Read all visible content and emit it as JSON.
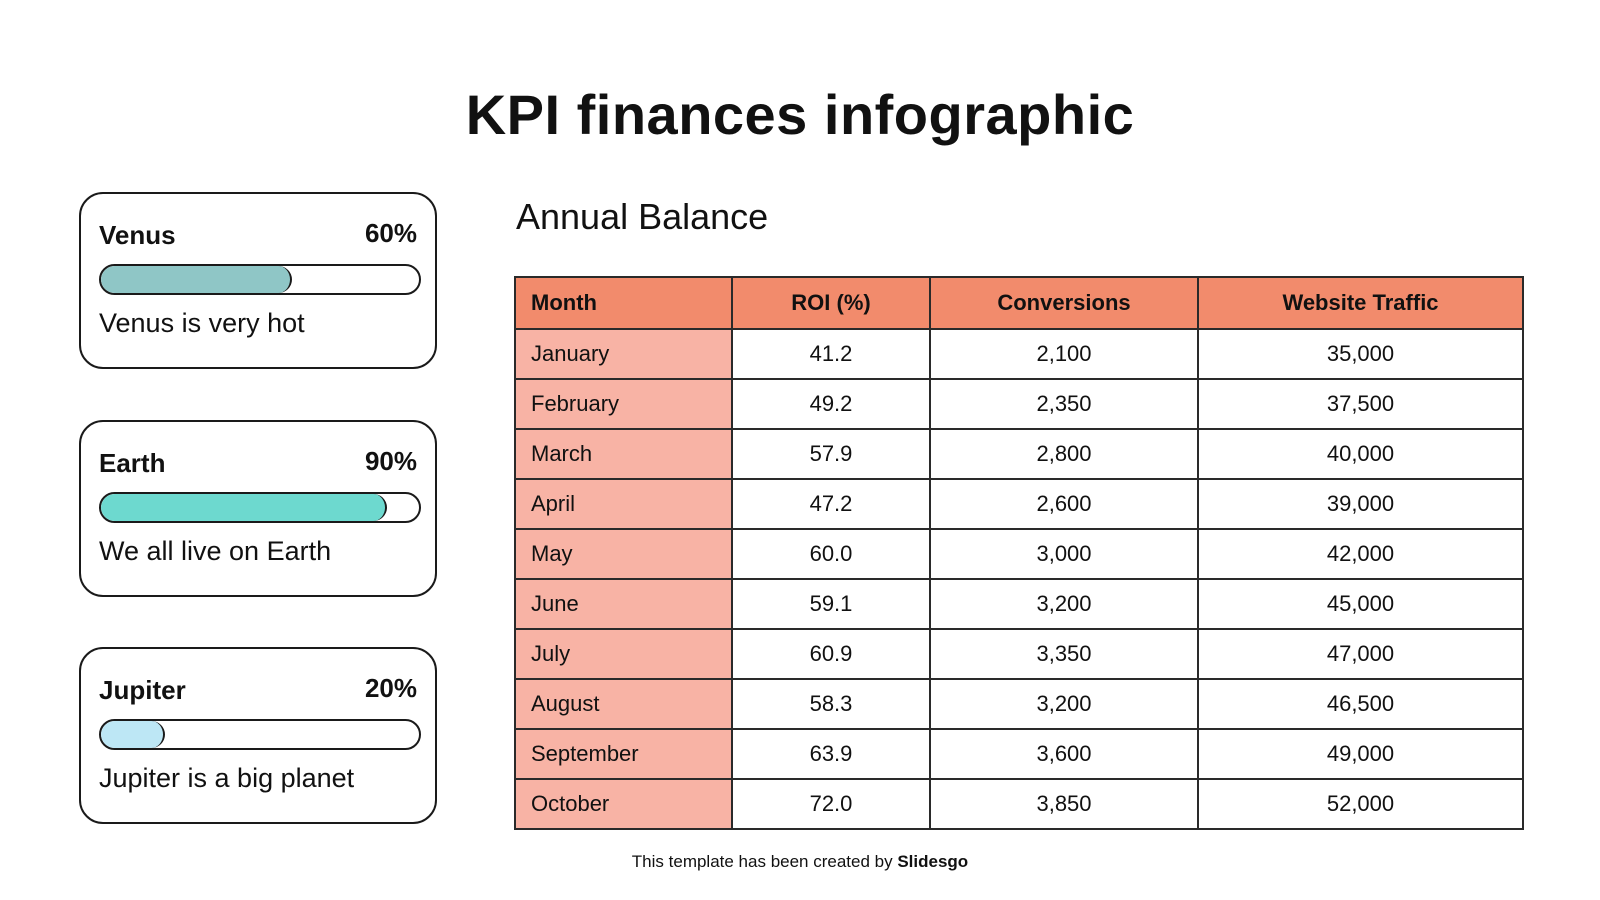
{
  "title": "KPI finances infographic",
  "cards": [
    {
      "name": "Venus",
      "percent_label": "60%",
      "percent": 60,
      "description": "Venus is very hot",
      "color": "#8fc6c6"
    },
    {
      "name": "Earth",
      "percent_label": "90%",
      "percent": 90,
      "description": "We all live on Earth",
      "color": "#6dd9cf"
    },
    {
      "name": "Jupiter",
      "percent_label": "20%",
      "percent": 20,
      "description": "Jupiter is a big planet",
      "color": "#bde7f5"
    }
  ],
  "table": {
    "title": "Annual Balance",
    "headers": [
      "Month",
      "ROI (%)",
      "Conversions",
      "Website Traffic"
    ],
    "rows": [
      [
        "January",
        "41.2",
        "2,100",
        "35,000"
      ],
      [
        "February",
        "49.2",
        "2,350",
        "37,500"
      ],
      [
        "March",
        "57.9",
        "2,800",
        "40,000"
      ],
      [
        "April",
        "47.2",
        "2,600",
        "39,000"
      ],
      [
        "May",
        "60.0",
        "3,000",
        "42,000"
      ],
      [
        "June",
        "59.1",
        "3,200",
        "45,000"
      ],
      [
        "July",
        "60.9",
        "3,350",
        "47,000"
      ],
      [
        "August",
        "58.3",
        "3,200",
        "46,500"
      ],
      [
        "September",
        "63.9",
        "3,600",
        "49,000"
      ],
      [
        "October",
        "72.0",
        "3,850",
        "52,000"
      ]
    ]
  },
  "footer": {
    "text": "This template has been created by ",
    "brand": "Slidesgo"
  }
}
